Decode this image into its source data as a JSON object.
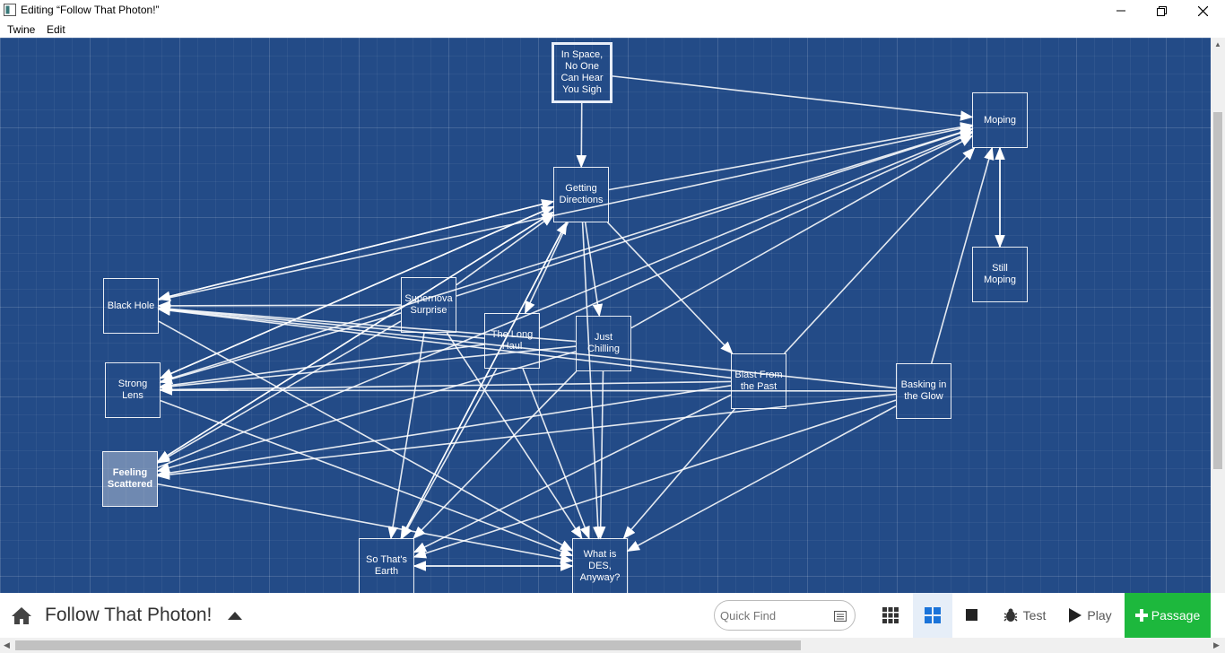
{
  "window": {
    "title": "Editing “Follow That Photon!”"
  },
  "menu": [
    "Twine",
    "Edit"
  ],
  "story": {
    "passages": [
      {
        "id": "space",
        "title": "In Space, No One Can Hear You Sigh",
        "start": true
      },
      {
        "id": "moping",
        "title": "Moping"
      },
      {
        "id": "dirs",
        "title": "Getting Directions"
      },
      {
        "id": "still",
        "title": "Still Moping"
      },
      {
        "id": "black",
        "title": "Black Hole"
      },
      {
        "id": "super",
        "title": "Supernova Surprise"
      },
      {
        "id": "longhaul",
        "title": "The Long Haul"
      },
      {
        "id": "chill",
        "title": "Just Chilling"
      },
      {
        "id": "strong",
        "title": "Strong Lens"
      },
      {
        "id": "blast",
        "title": "Blast From the Past"
      },
      {
        "id": "bask",
        "title": "Basking in the Glow"
      },
      {
        "id": "scatter",
        "title": "Feeling Scattered",
        "selected": true
      },
      {
        "id": "earth",
        "title": "So That's Earth"
      },
      {
        "id": "des",
        "title": "What is DES, Anyway?"
      }
    ],
    "links": [
      [
        "space",
        "dirs"
      ],
      [
        "space",
        "moping"
      ],
      [
        "moping",
        "still"
      ],
      [
        "still",
        "moping"
      ],
      [
        "dirs",
        "black"
      ],
      [
        "dirs",
        "strong"
      ],
      [
        "dirs",
        "scatter"
      ],
      [
        "dirs",
        "longhaul"
      ],
      [
        "dirs",
        "chill"
      ],
      [
        "dirs",
        "blast"
      ],
      [
        "dirs",
        "des"
      ],
      [
        "dirs",
        "moping"
      ],
      [
        "dirs",
        "earth"
      ],
      [
        "black",
        "moping"
      ],
      [
        "black",
        "dirs"
      ],
      [
        "black",
        "des"
      ],
      [
        "super",
        "black"
      ],
      [
        "super",
        "strong"
      ],
      [
        "super",
        "scatter"
      ],
      [
        "super",
        "des"
      ],
      [
        "super",
        "earth"
      ],
      [
        "super",
        "moping"
      ],
      [
        "super",
        "dirs"
      ],
      [
        "longhaul",
        "black"
      ],
      [
        "longhaul",
        "earth"
      ],
      [
        "longhaul",
        "des"
      ],
      [
        "longhaul",
        "strong"
      ],
      [
        "longhaul",
        "moping"
      ],
      [
        "chill",
        "black"
      ],
      [
        "chill",
        "strong"
      ],
      [
        "chill",
        "scatter"
      ],
      [
        "chill",
        "des"
      ],
      [
        "chill",
        "earth"
      ],
      [
        "chill",
        "moping"
      ],
      [
        "strong",
        "dirs"
      ],
      [
        "strong",
        "moping"
      ],
      [
        "strong",
        "des"
      ],
      [
        "blast",
        "black"
      ],
      [
        "blast",
        "strong"
      ],
      [
        "blast",
        "scatter"
      ],
      [
        "blast",
        "earth"
      ],
      [
        "blast",
        "des"
      ],
      [
        "blast",
        "moping"
      ],
      [
        "bask",
        "moping"
      ],
      [
        "bask",
        "black"
      ],
      [
        "bask",
        "strong"
      ],
      [
        "bask",
        "scatter"
      ],
      [
        "bask",
        "des"
      ],
      [
        "bask",
        "earth"
      ],
      [
        "scatter",
        "dirs"
      ],
      [
        "scatter",
        "moping"
      ],
      [
        "scatter",
        "des"
      ],
      [
        "earth",
        "dirs"
      ],
      [
        "earth",
        "des"
      ],
      [
        "des",
        "earth"
      ]
    ]
  },
  "toolbar": {
    "story_name": "Follow That Photon!",
    "quick_find_placeholder": "Quick Find",
    "test_label": "Test",
    "play_label": "Play",
    "passage_label": "Passage"
  },
  "colors": {
    "canvas": "#234b87",
    "passage_button": "#1db83d"
  }
}
